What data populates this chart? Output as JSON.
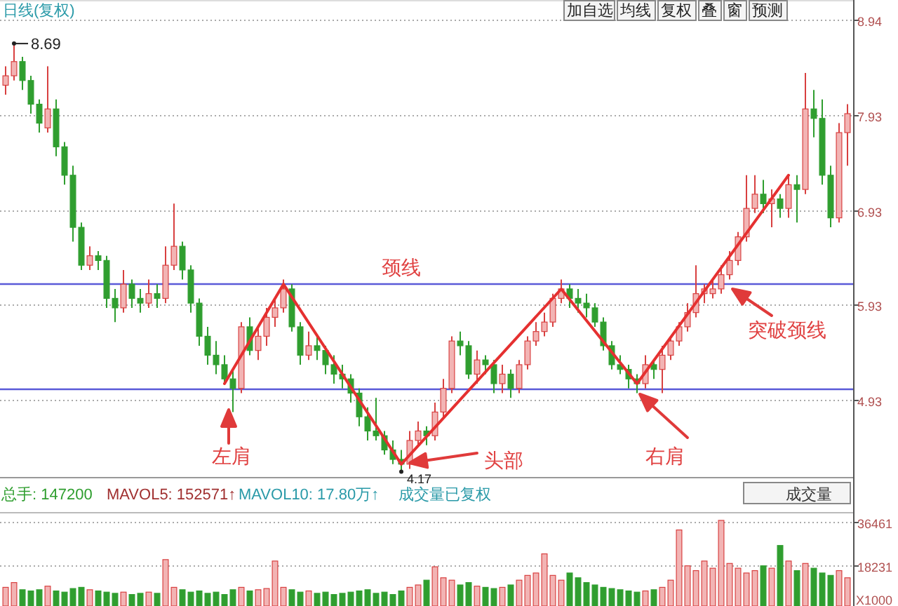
{
  "chart_data": [
    {
      "type": "candlestick",
      "title": "日线(复权)",
      "categories": [
        null,
        null,
        null,
        null,
        null,
        null,
        null,
        null,
        null,
        null,
        null,
        null,
        null,
        null,
        null,
        null,
        null,
        null,
        null,
        null,
        null,
        null,
        null,
        null,
        null,
        null,
        null,
        null,
        null,
        null,
        null,
        null,
        null,
        null,
        null,
        null,
        null,
        null,
        null,
        null,
        null,
        null,
        null,
        null,
        null,
        null,
        null,
        null,
        null,
        null,
        null,
        null,
        null,
        null,
        null,
        null,
        null,
        null,
        null,
        null,
        null,
        null,
        null,
        null,
        null,
        null,
        null,
        null,
        null,
        null,
        null,
        null,
        null,
        null,
        null,
        null,
        null,
        null,
        null,
        null,
        null,
        null,
        null,
        null,
        null,
        null,
        null,
        null,
        null,
        null,
        null,
        null,
        null,
        null,
        null,
        null,
        null,
        null,
        null,
        null,
        null
      ],
      "ohlc": [
        [
          8.25,
          8.45,
          8.15,
          8.35
        ],
        [
          8.35,
          8.69,
          8.3,
          8.5
        ],
        [
          8.5,
          8.55,
          8.2,
          8.3
        ],
        [
          8.3,
          8.35,
          7.95,
          8.05
        ],
        [
          8.05,
          8.1,
          7.75,
          7.85
        ],
        [
          7.8,
          8.45,
          7.75,
          8.0
        ],
        [
          8.0,
          8.1,
          7.5,
          7.6
        ],
        [
          7.6,
          7.65,
          7.2,
          7.3
        ],
        [
          7.3,
          7.4,
          6.6,
          6.75
        ],
        [
          6.75,
          6.8,
          6.3,
          6.35
        ],
        [
          6.35,
          6.55,
          6.3,
          6.45
        ],
        [
          6.45,
          6.5,
          6.3,
          6.4
        ],
        [
          6.4,
          6.45,
          5.9,
          6.0
        ],
        [
          6.0,
          6.1,
          5.75,
          5.9
        ],
        [
          5.9,
          6.3,
          5.85,
          6.15
        ],
        [
          6.15,
          6.2,
          5.9,
          6.0
        ],
        [
          6.0,
          6.1,
          5.85,
          5.95
        ],
        [
          5.95,
          6.2,
          5.9,
          6.05
        ],
        [
          6.05,
          6.15,
          5.9,
          6.0
        ],
        [
          6.0,
          6.55,
          5.95,
          6.35
        ],
        [
          6.35,
          7.0,
          6.3,
          6.55
        ],
        [
          6.55,
          6.6,
          6.2,
          6.3
        ],
        [
          6.3,
          6.35,
          5.85,
          5.95
        ],
        [
          5.95,
          6.0,
          5.5,
          5.6
        ],
        [
          5.6,
          5.7,
          5.3,
          5.4
        ],
        [
          5.4,
          5.55,
          5.2,
          5.3
        ],
        [
          5.3,
          5.4,
          5.1,
          5.15
        ],
        [
          5.15,
          5.25,
          4.8,
          5.05
        ],
        [
          5.05,
          5.75,
          5.0,
          5.7
        ],
        [
          5.7,
          5.8,
          5.4,
          5.45
        ],
        [
          5.45,
          5.7,
          5.35,
          5.6
        ],
        [
          5.6,
          5.9,
          5.5,
          5.8
        ],
        [
          5.8,
          6.0,
          5.7,
          5.9
        ],
        [
          5.9,
          6.2,
          5.85,
          6.1
        ],
        [
          6.1,
          6.15,
          5.65,
          5.7
        ],
        [
          5.7,
          5.75,
          5.3,
          5.4
        ],
        [
          5.4,
          5.65,
          5.35,
          5.5
        ],
        [
          5.5,
          5.6,
          5.35,
          5.45
        ],
        [
          5.45,
          5.5,
          5.2,
          5.3
        ],
        [
          5.3,
          5.4,
          5.1,
          5.2
        ],
        [
          5.2,
          5.3,
          5.05,
          5.15
        ],
        [
          5.15,
          5.2,
          4.9,
          5.0
        ],
        [
          5.0,
          5.05,
          4.65,
          4.75
        ],
        [
          4.75,
          4.85,
          4.5,
          4.6
        ],
        [
          4.6,
          4.95,
          4.5,
          4.55
        ],
        [
          4.55,
          4.6,
          4.35,
          4.4
        ],
        [
          4.4,
          4.5,
          4.25,
          4.3
        ],
        [
          4.3,
          4.4,
          4.17,
          4.25
        ],
        [
          4.25,
          4.6,
          4.2,
          4.5
        ],
        [
          4.5,
          4.7,
          4.45,
          4.6
        ],
        [
          4.6,
          4.65,
          4.45,
          4.55
        ],
        [
          4.55,
          4.9,
          4.5,
          4.8
        ],
        [
          4.8,
          5.15,
          4.75,
          5.05
        ],
        [
          5.05,
          5.6,
          5.0,
          5.55
        ],
        [
          5.55,
          5.65,
          5.4,
          5.5
        ],
        [
          5.5,
          5.55,
          5.15,
          5.2
        ],
        [
          5.2,
          5.45,
          5.1,
          5.35
        ],
        [
          5.35,
          5.4,
          5.2,
          5.3
        ],
        [
          5.3,
          5.35,
          5.0,
          5.1
        ],
        [
          5.1,
          5.3,
          5.0,
          5.2
        ],
        [
          5.2,
          5.25,
          4.95,
          5.05
        ],
        [
          5.05,
          5.35,
          5.0,
          5.3
        ],
        [
          5.3,
          5.6,
          5.25,
          5.55
        ],
        [
          5.55,
          5.75,
          5.5,
          5.65
        ],
        [
          5.65,
          5.85,
          5.6,
          5.75
        ],
        [
          5.75,
          6.05,
          5.7,
          6.0
        ],
        [
          6.0,
          6.2,
          5.95,
          6.1
        ],
        [
          6.1,
          6.15,
          5.9,
          6.0
        ],
        [
          6.0,
          6.1,
          5.85,
          5.95
        ],
        [
          5.95,
          6.05,
          5.8,
          5.9
        ],
        [
          5.9,
          5.95,
          5.7,
          5.75
        ],
        [
          5.75,
          5.8,
          5.45,
          5.5
        ],
        [
          5.5,
          5.55,
          5.25,
          5.3
        ],
        [
          5.3,
          5.4,
          5.2,
          5.25
        ],
        [
          5.25,
          5.3,
          5.05,
          5.15
        ],
        [
          5.15,
          5.2,
          5.0,
          5.1
        ],
        [
          5.1,
          5.4,
          5.05,
          5.3
        ],
        [
          5.3,
          5.35,
          5.15,
          5.25
        ],
        [
          5.25,
          5.5,
          5.0,
          5.4
        ],
        [
          5.4,
          5.6,
          5.35,
          5.55
        ],
        [
          5.55,
          5.75,
          5.5,
          5.7
        ],
        [
          5.7,
          5.95,
          5.65,
          5.85
        ],
        [
          5.85,
          6.35,
          5.8,
          6.05
        ],
        [
          6.05,
          6.15,
          5.95,
          6.1
        ],
        [
          6.05,
          6.2,
          6.0,
          6.1
        ],
        [
          6.1,
          6.35,
          6.05,
          6.25
        ],
        [
          6.25,
          6.5,
          6.2,
          6.4
        ],
        [
          6.4,
          6.7,
          6.35,
          6.65
        ],
        [
          6.65,
          7.3,
          6.6,
          6.95
        ],
        [
          6.95,
          7.3,
          6.9,
          7.1
        ],
        [
          7.1,
          7.25,
          6.9,
          7.0
        ],
        [
          7.0,
          7.15,
          6.75,
          7.05
        ],
        [
          7.05,
          7.1,
          6.85,
          6.95
        ],
        [
          6.95,
          7.3,
          6.85,
          7.2
        ],
        [
          7.2,
          7.3,
          6.8,
          7.15
        ],
        [
          7.15,
          8.38,
          7.1,
          8.0
        ],
        [
          8.0,
          8.2,
          7.7,
          7.9
        ],
        [
          7.9,
          8.1,
          7.2,
          7.3
        ],
        [
          7.3,
          7.4,
          6.75,
          6.85
        ],
        [
          6.85,
          7.85,
          6.8,
          7.75
        ],
        [
          7.75,
          8.05,
          7.4,
          7.95
        ]
      ],
      "series": [
        {
          "type": "line",
          "color": "#e53030",
          "values": [
            null,
            null,
            null,
            null,
            null,
            null,
            null,
            null,
            null,
            null,
            null,
            null,
            null,
            null,
            null,
            null,
            null,
            null,
            null,
            null,
            null,
            null,
            null,
            null,
            null,
            null,
            5.1,
            null,
            null,
            null,
            null,
            null,
            null,
            6.15,
            null,
            null,
            null,
            null,
            null,
            null,
            null,
            null,
            null,
            null,
            null,
            null,
            null,
            4.25,
            null,
            null,
            null,
            null,
            null,
            null,
            null,
            null,
            null,
            null,
            null,
            null,
            null,
            null,
            null,
            null,
            null,
            null,
            6.1,
            null,
            null,
            null,
            null,
            null,
            null,
            null,
            null,
            5.1,
            null,
            null,
            null,
            null,
            null,
            null,
            null,
            null,
            null,
            null,
            null,
            null,
            null,
            null,
            null,
            null,
            null,
            7.3,
            null,
            null,
            null,
            null,
            null,
            null,
            null
          ]
        }
      ],
      "ylim": [
        4.1,
        9.15
      ],
      "yticks": [
        4.93,
        5.93,
        6.93,
        7.93,
        8.94
      ],
      "grid": "y",
      "ref_lines": [
        {
          "axis": "y",
          "value": 6.16,
          "label": "颈线",
          "color": "#5a5ad8"
        },
        {
          "axis": "y",
          "value": 5.05,
          "color": "#5a5ad8"
        }
      ],
      "annotations": [
        "8.69",
        "4.17",
        "左肩",
        "头部",
        "右肩",
        "突破颈线",
        "加自选",
        "均线",
        "复权",
        "叠",
        "窗",
        "预测"
      ]
    },
    {
      "type": "bar",
      "ylabel": "X1000",
      "categories": [
        null,
        null,
        null,
        null,
        null,
        null,
        null,
        null,
        null,
        null,
        null,
        null,
        null,
        null,
        null,
        null,
        null,
        null,
        null,
        null,
        null,
        null,
        null,
        null,
        null,
        null,
        null,
        null,
        null,
        null,
        null,
        null,
        null,
        null,
        null,
        null,
        null,
        null,
        null,
        null,
        null,
        null,
        null,
        null,
        null,
        null,
        null,
        null,
        null,
        null,
        null,
        null,
        null,
        null,
        null,
        null,
        null,
        null,
        null,
        null,
        null,
        null,
        null,
        null,
        null,
        null,
        null,
        null,
        null,
        null,
        null,
        null,
        null,
        null,
        null,
        null,
        null,
        null,
        null,
        null,
        null,
        null,
        null,
        null,
        null,
        null,
        null,
        null,
        null,
        null,
        null,
        null,
        null,
        null,
        null,
        null,
        null,
        null,
        null,
        null,
        null
      ],
      "values": [
        9000,
        11000,
        8000,
        7500,
        8000,
        9500,
        7500,
        7000,
        8500,
        9000,
        8000,
        7500,
        7000,
        6500,
        7000,
        6000,
        6500,
        7000,
        6500,
        20600,
        9000,
        8000,
        7000,
        7500,
        6500,
        7000,
        6000,
        8000,
        9000,
        7500,
        8000,
        8500,
        20000,
        9000,
        8000,
        7000,
        7500,
        6500,
        7000,
        6000,
        6500,
        7000,
        7500,
        8000,
        6500,
        7000,
        6000,
        7500,
        9000,
        10000,
        12000,
        17600,
        13000,
        12000,
        10000,
        11000,
        9500,
        9000,
        8500,
        9000,
        10000,
        12000,
        14000,
        15000,
        23000,
        14000,
        12000,
        15000,
        13000,
        11000,
        10000,
        9000,
        8500,
        8000,
        7500,
        7000,
        7500,
        8000,
        9000,
        12000,
        33000,
        18000,
        16000,
        20000,
        17000,
        37000,
        19000,
        17000,
        15000,
        16000,
        18000,
        17000,
        26500,
        20000,
        16000,
        19000,
        17000,
        15000,
        14000,
        16000,
        13000
      ],
      "ylim": [
        1200,
        40500
      ],
      "yticks": [
        18231,
        36461
      ],
      "grid": "y",
      "annotations": [
        "总手: 147200",
        "MAVOL5: 152571↑",
        "MAVOL10: 17.80万↑",
        "成交量已复权",
        "成交量"
      ]
    }
  ]
}
